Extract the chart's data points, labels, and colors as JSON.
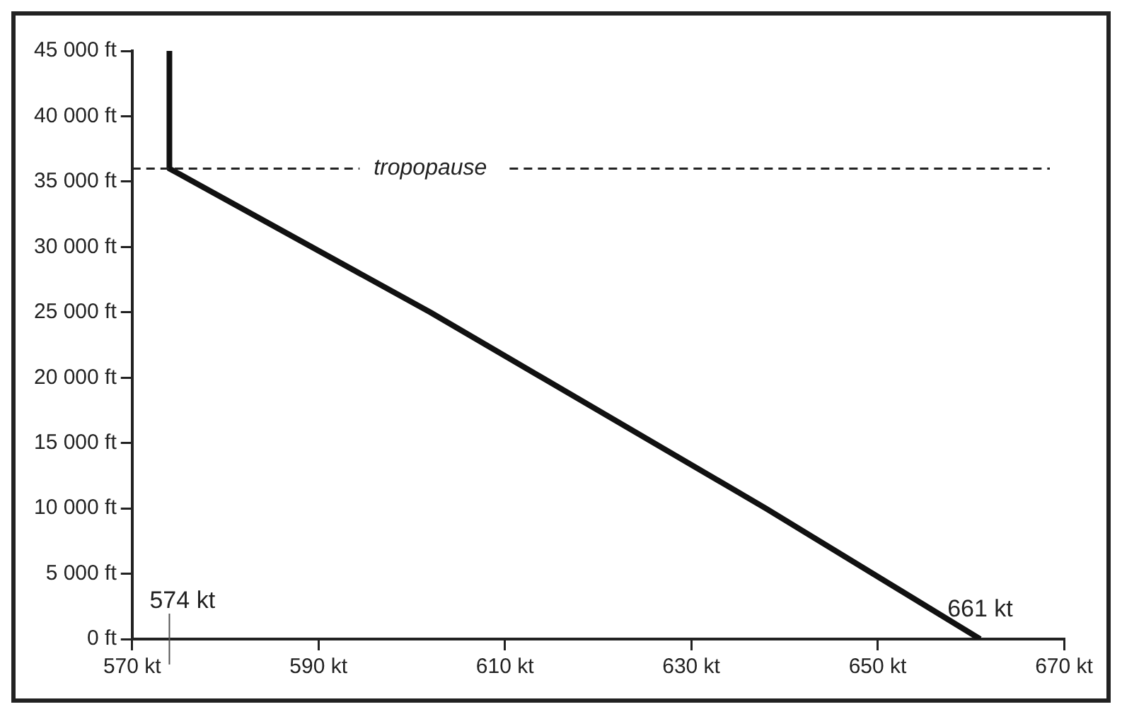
{
  "chart_data": {
    "type": "line",
    "series": [
      {
        "color": "#111111",
        "x": [
          661,
          638,
          602,
          574,
          574
        ],
        "values": [
          0,
          10000,
          25000,
          36000,
          45000
        ]
      }
    ],
    "xlim": [
      570,
      670
    ],
    "xticks": [
      {
        "value": 570,
        "label": "570 kt"
      },
      {
        "value": 590,
        "label": "590 kt"
      },
      {
        "value": 610,
        "label": "610 kt"
      },
      {
        "value": 630,
        "label": "630 kt"
      },
      {
        "value": 650,
        "label": "650 kt"
      },
      {
        "value": 670,
        "label": "670 kt"
      }
    ],
    "ylim": [
      0,
      45000
    ],
    "yticks": [
      {
        "value": 0,
        "label": "0 ft"
      },
      {
        "value": 5000,
        "label": "5 000 ft"
      },
      {
        "value": 10000,
        "label": "10 000 ft"
      },
      {
        "value": 15000,
        "label": "15 000 ft"
      },
      {
        "value": 20000,
        "label": "20 000 ft"
      },
      {
        "value": 25000,
        "label": "25 000 ft"
      },
      {
        "value": 30000,
        "label": "30 000 ft"
      },
      {
        "value": 35000,
        "label": "35 000 ft"
      },
      {
        "value": 40000,
        "label": "40 000 ft"
      },
      {
        "value": 45000,
        "label": "45 000 ft"
      }
    ],
    "ref_lines": [
      {
        "axis": "y",
        "value": 36000,
        "label": "tropopause",
        "color": "#222222",
        "line_style": "dashed"
      }
    ],
    "annotations": [
      "574 kt",
      {
        "text": "661 kt",
        "x": 661,
        "y": 0
      }
    ],
    "grid": false,
    "legend": false,
    "marker": "none",
    "line_style": "solid"
  }
}
